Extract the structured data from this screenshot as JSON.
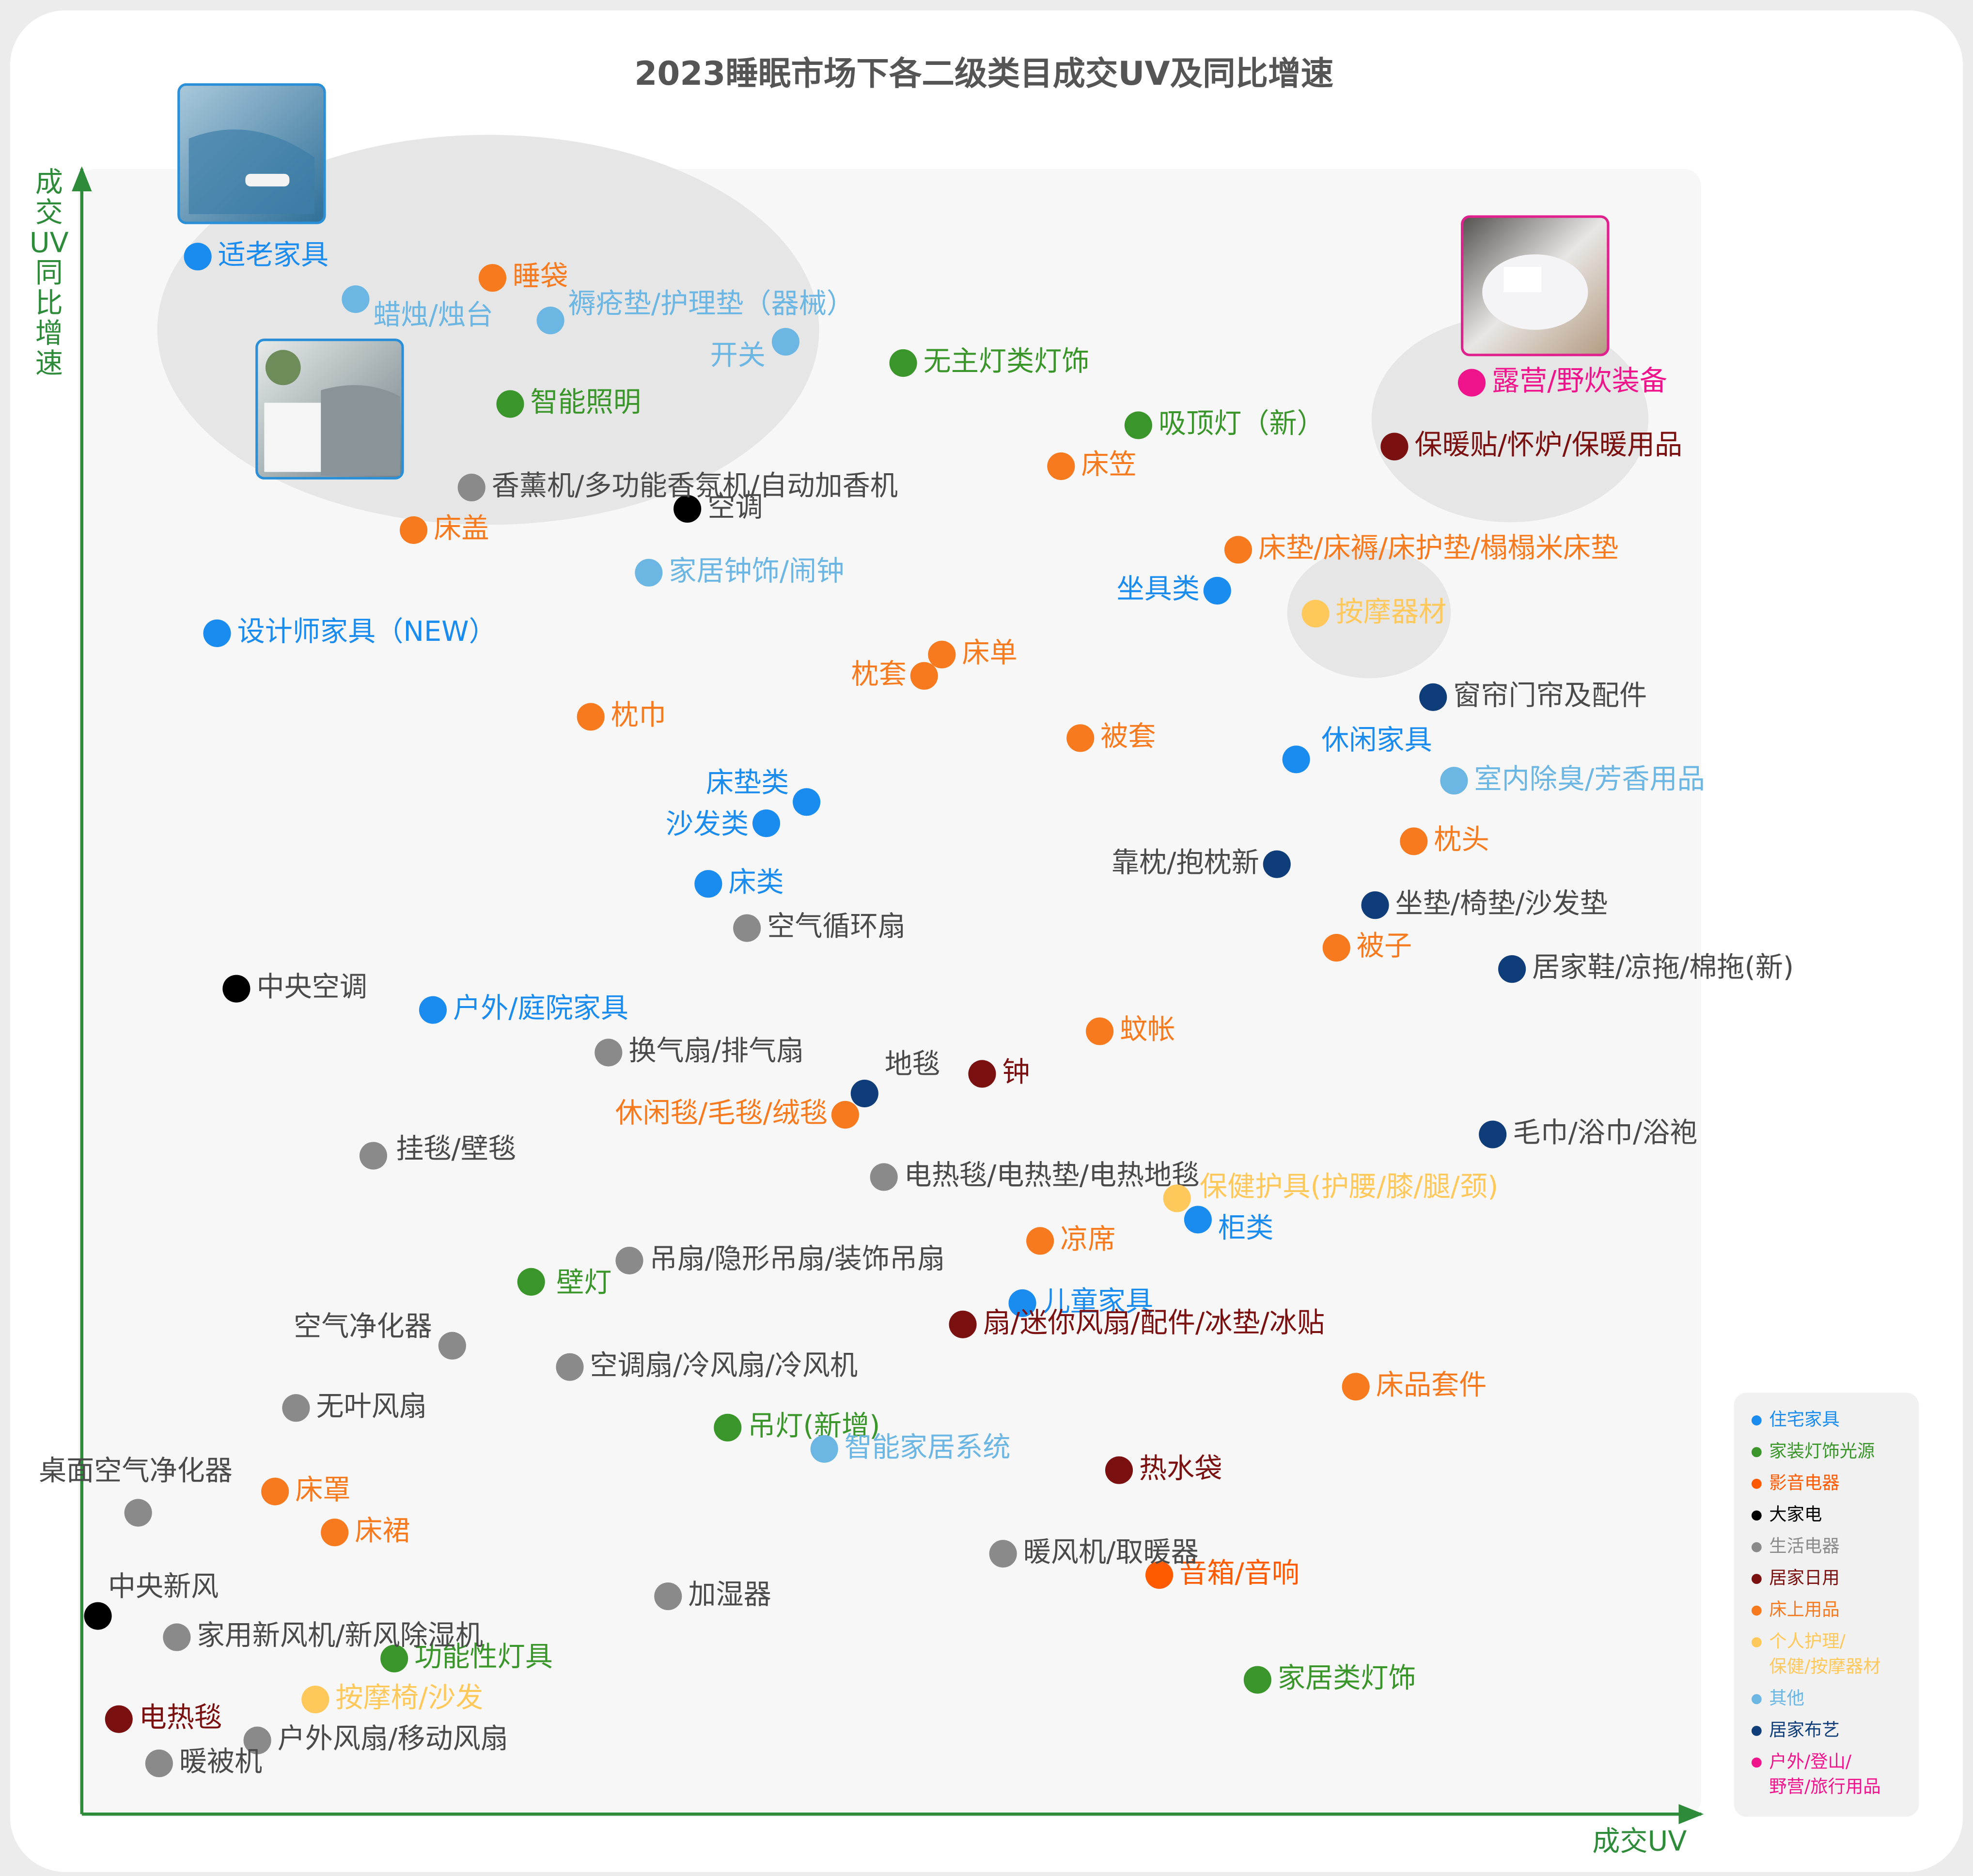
{
  "chart_data": {
    "type": "scatter",
    "title": "2023睡眠市场下各二级类目成交UV及同比增速",
    "x_label": "成交UV",
    "y_label": "成交UV同比增速",
    "xlim": [
      0,
      100
    ],
    "ylim": [
      0,
      100
    ],
    "series": [
      {
        "name": "住宅家具",
        "color": "#1a8cf0",
        "labels": [
          "适老家具",
          "设计师家具（NEW）",
          "坐具类",
          "休闲家具",
          "床垫类",
          "沙发类",
          "床类",
          "户外/庭院家具",
          "柜类",
          "儿童家具"
        ],
        "x": [
          7.2,
          8.4,
          70.5,
          75.4,
          45.0,
          42.5,
          38.9,
          21.8,
          69.3,
          58.4
        ],
        "values": [
          95.1,
          72.1,
          74.7,
          64.4,
          61.8,
          60.5,
          56.8,
          49.1,
          36.3,
          31.2
        ]
      },
      {
        "name": "家装灯饰光源",
        "color": "#3a962a",
        "labels": [
          "无主灯类灯饰",
          "智能照明",
          "吸顶灯（新）",
          "壁灯",
          "吊灯(新增)",
          "功能性灯具",
          "家居类灯饰"
        ],
        "x": [
          51.0,
          26.6,
          65.6,
          27.9,
          40.1,
          19.4,
          73.0
        ],
        "values": [
          88.6,
          86.1,
          84.8,
          32.5,
          23.6,
          9.5,
          8.2
        ]
      },
      {
        "name": "影音电器",
        "color": "#ff5a00",
        "labels": [
          "音箱/音响"
        ],
        "x": [
          66.9
        ],
        "values": [
          14.6
        ]
      },
      {
        "name": "大家电",
        "color": "#000000",
        "labels": [
          "空调",
          "中央空调",
          "中央新风"
        ],
        "x": [
          37.6,
          9.6,
          1.0
        ],
        "values": [
          79.7,
          50.4,
          12.1
        ]
      },
      {
        "name": "生活电器",
        "color": "#8a8a8a",
        "labels": [
          "香薰机/多功能香氛机/自动加香机",
          "空气循环扇",
          "换气扇/排气扇",
          "挂毯/壁毯",
          "电热毯/电热垫/电热地毯",
          "吊扇/隐形吊扇/装饰吊扇",
          "空气净化器",
          "空调扇/冷风扇/冷风机",
          "无叶风扇",
          "桌面空气净化器",
          "暖风机/取暖器",
          "加湿器",
          "家用新风机/新风除湿机",
          "户外风扇/移动风扇",
          "暖被机"
        ],
        "x": [
          24.2,
          41.3,
          32.7,
          18.1,
          49.8,
          34.0,
          23.0,
          30.3,
          13.3,
          3.5,
          57.2,
          36.4,
          5.9,
          10.9,
          4.8
        ],
        "values": [
          81.0,
          54.1,
          46.5,
          40.2,
          38.9,
          33.8,
          28.6,
          27.3,
          24.8,
          18.4,
          15.9,
          13.3,
          10.8,
          4.5,
          3.1
        ]
      },
      {
        "name": "居家日用",
        "color": "#7a1010",
        "labels": [
          "保暖贴/怀炉/保暖用品",
          "钟",
          "扇/迷你风扇/配件/冰垫/冰贴",
          "热水袋",
          "电热毯"
        ],
        "x": [
          81.5,
          55.9,
          54.7,
          64.4,
          2.3
        ],
        "values": [
          83.5,
          45.2,
          29.9,
          21.0,
          5.8
        ]
      },
      {
        "name": "床上用品",
        "color": "#f77a1e",
        "labels": [
          "睡袋",
          "床笠",
          "床盖",
          "床垫/床褥/床护垫/榻榻米床垫",
          "床单",
          "枕套",
          "枕巾",
          "被套",
          "枕头",
          "被子",
          "蚊帐",
          "休闲毯/毛毯/绒毯",
          "凉席",
          "床品套件",
          "床罩",
          "床裙"
        ],
        "x": [
          25.5,
          60.8,
          20.6,
          71.8,
          53.4,
          52.3,
          31.6,
          62.0,
          82.7,
          77.9,
          63.2,
          47.4,
          59.5,
          79.1,
          12.0,
          15.7
        ],
        "values": [
          93.8,
          82.3,
          78.4,
          77.2,
          70.8,
          69.5,
          67.0,
          65.7,
          59.4,
          52.9,
          47.8,
          42.7,
          35.0,
          26.1,
          19.7,
          17.2
        ]
      },
      {
        "name": "个人护理/保健/按摩器材",
        "color": "#ffc85a",
        "labels": [
          "按摩器材",
          "保健护具(护腰/膝/腿/颈)",
          "按摩椅/沙发"
        ],
        "x": [
          76.6,
          68.0,
          14.5
        ],
        "values": [
          73.3,
          37.6,
          7.0
        ]
      },
      {
        "name": "其他",
        "color": "#6cb6e4",
        "labels": [
          "蜡烛/烛台",
          "褥疮垫/护理垫（器械）",
          "开关",
          "家居钟饰/闹钟",
          "室内除臭/芳香用品",
          "智能家居系统"
        ],
        "x": [
          17.0,
          29.1,
          43.7,
          35.2,
          85.2,
          46.1
        ],
        "values": [
          92.5,
          91.2,
          89.9,
          75.8,
          63.1,
          22.3
        ]
      },
      {
        "name": "居家布艺",
        "color": "#0f3d7a",
        "labels": [
          "窗帘门帘及配件",
          "靠枕/抱枕新",
          "坐垫/椅垫/沙发垫",
          "居家鞋/凉拖/棉拖(新)",
          "地毯",
          "毛巾/浴巾/浴袍"
        ],
        "x": [
          83.9,
          74.2,
          80.3,
          88.8,
          48.6,
          87.6
        ],
        "values": [
          68.2,
          58.0,
          55.5,
          51.6,
          44.0,
          41.5
        ]
      },
      {
        "name": "户外/登山/野营/旅行用品",
        "color": "#f0148c",
        "labels": [
          "露营/野炊装备"
        ],
        "x": [
          86.3
        ],
        "values": [
          87.4
        ]
      }
    ]
  }
}
